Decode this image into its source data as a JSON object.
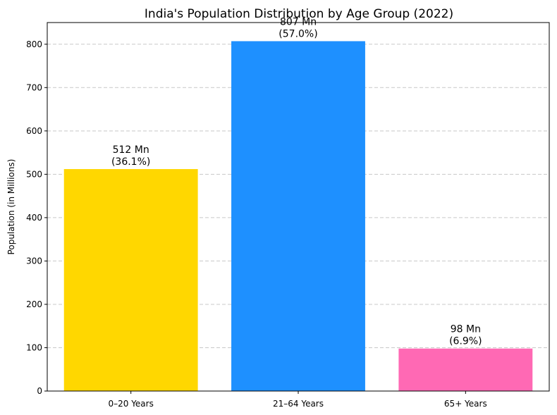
{
  "chart_data": {
    "type": "bar",
    "title": "India's Population Distribution by Age Group (2022)",
    "xlabel": "",
    "ylabel": "Population (in Millions)",
    "categories": [
      "0–20 Years",
      "21–64 Years",
      "65+ Years"
    ],
    "values": [
      512,
      807,
      98
    ],
    "value_labels": [
      "512 Mn",
      "807 Mn",
      "98 Mn"
    ],
    "percent_labels": [
      "(36.1%)",
      "(57.0%)",
      "(6.9%)"
    ],
    "colors": [
      "#ffd700",
      "#1e90ff",
      "#ff69b4"
    ],
    "ylim": [
      0,
      850
    ],
    "yticks": [
      "0",
      "100",
      "200",
      "300",
      "400",
      "500",
      "600",
      "700",
      "800"
    ],
    "grid": "y-dashed",
    "legend": "none"
  }
}
